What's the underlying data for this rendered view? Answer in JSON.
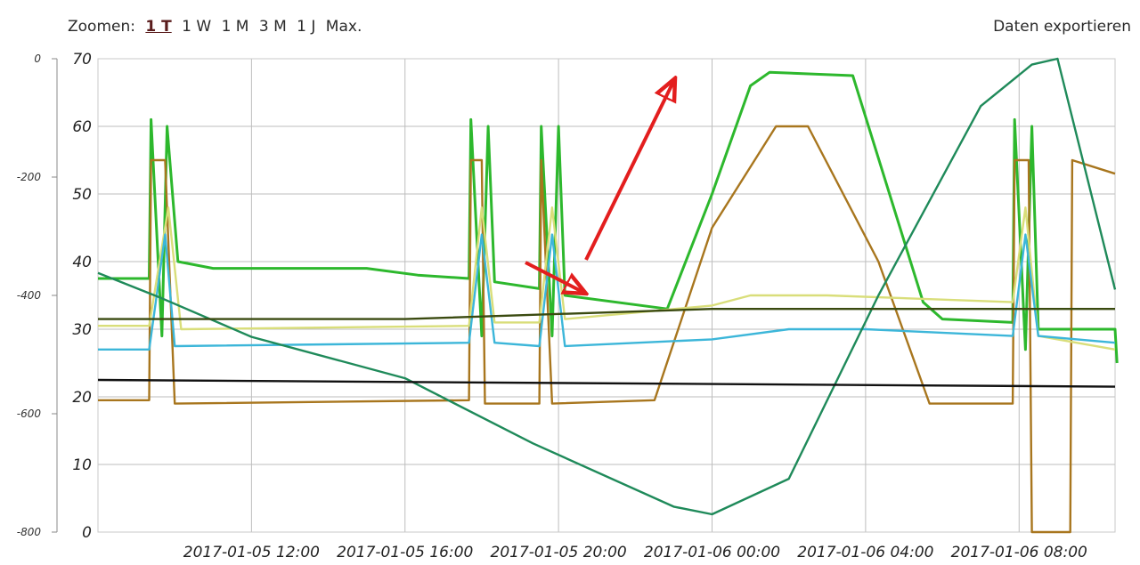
{
  "toolbar": {
    "zoom_label": "Zoomen:",
    "zoom_options": [
      "1 T",
      "1 W",
      "1 M",
      "3 M",
      "1 J",
      "Max."
    ],
    "active_zoom": "1 T",
    "export_label": "Daten exportieren"
  },
  "chart_data": {
    "type": "line",
    "title": "",
    "xlabel": "",
    "ylabel": "",
    "grid": true,
    "legend": "none",
    "x_ticks": [
      "2017-01-05 12:00",
      "2017-01-05 16:00",
      "2017-01-05 20:00",
      "2017-01-06 00:00",
      "2017-01-06 04:00",
      "2017-01-06 08:00"
    ],
    "x_range": [
      "2017-01-05 08:00",
      "2017-01-06 10:30"
    ],
    "y_axis_left": {
      "ticks": [
        0,
        -200,
        -400,
        -600,
        -800
      ],
      "range": [
        -800,
        0
      ]
    },
    "y_axis_right": {
      "ticks": [
        70,
        60,
        50,
        40,
        30,
        20,
        10,
        0
      ],
      "range": [
        0,
        70
      ]
    },
    "series": [
      {
        "color": "#2db82d",
        "axis": "right",
        "points": [
          [
            "2017-01-05 08:00",
            37.5
          ],
          [
            "2017-01-05 09:20",
            37.5
          ],
          [
            "2017-01-05 09:23",
            61
          ],
          [
            "2017-01-05 09:40",
            29
          ],
          [
            "2017-01-05 09:48",
            60
          ],
          [
            "2017-01-05 10:05",
            40
          ],
          [
            "2017-01-05 11:00",
            39
          ],
          [
            "2017-01-05 15:00",
            39
          ],
          [
            "2017-01-05 16:20",
            38
          ],
          [
            "2017-01-05 17:40",
            37.5
          ],
          [
            "2017-01-05 17:43",
            61
          ],
          [
            "2017-01-05 18:00",
            29
          ],
          [
            "2017-01-05 18:10",
            60
          ],
          [
            "2017-01-05 18:20",
            37
          ],
          [
            "2017-01-05 19:30",
            36
          ],
          [
            "2017-01-05 19:33",
            60
          ],
          [
            "2017-01-05 19:50",
            29
          ],
          [
            "2017-01-05 20:00",
            60
          ],
          [
            "2017-01-05 20:10",
            35
          ],
          [
            "2017-01-05 22:50",
            33
          ],
          [
            "2017-01-06 00:00",
            50
          ],
          [
            "2017-01-06 01:00",
            66
          ],
          [
            "2017-01-06 01:30",
            68
          ],
          [
            "2017-01-06 03:40",
            67.5
          ],
          [
            "2017-01-06 05:30",
            34
          ],
          [
            "2017-01-06 06:00",
            31.5
          ],
          [
            "2017-01-06 07:50",
            31
          ],
          [
            "2017-01-06 07:53",
            61
          ],
          [
            "2017-01-06 08:10",
            27
          ],
          [
            "2017-01-06 08:20",
            60
          ],
          [
            "2017-01-06 08:30",
            30
          ],
          [
            "2017-01-06 10:30",
            30
          ],
          [
            "2017-01-06 10:33",
            25
          ]
        ]
      },
      {
        "color": "#a8761e",
        "axis": "right",
        "points": [
          [
            "2017-01-05 08:00",
            19.5
          ],
          [
            "2017-01-05 09:20",
            19.5
          ],
          [
            "2017-01-05 09:23",
            55
          ],
          [
            "2017-01-05 09:45",
            55
          ],
          [
            "2017-01-05 10:00",
            19
          ],
          [
            "2017-01-05 17:40",
            19.5
          ],
          [
            "2017-01-05 17:43",
            55
          ],
          [
            "2017-01-05 18:00",
            55
          ],
          [
            "2017-01-05 18:05",
            19
          ],
          [
            "2017-01-05 19:30",
            19
          ],
          [
            "2017-01-05 19:33",
            55
          ],
          [
            "2017-01-05 19:50",
            19
          ],
          [
            "2017-01-05 22:30",
            19.5
          ],
          [
            "2017-01-06 00:00",
            45
          ],
          [
            "2017-01-06 01:40",
            60
          ],
          [
            "2017-01-06 02:30",
            60
          ],
          [
            "2017-01-06 04:20",
            40
          ],
          [
            "2017-01-06 05:40",
            19
          ],
          [
            "2017-01-06 07:50",
            19
          ],
          [
            "2017-01-06 07:53",
            55
          ],
          [
            "2017-01-06 08:15",
            55
          ],
          [
            "2017-01-06 08:20",
            0
          ],
          [
            "2017-01-06 09:20",
            0
          ],
          [
            "2017-01-06 09:23",
            55
          ],
          [
            "2017-01-06 10:30",
            53
          ]
        ]
      },
      {
        "color": "#d9de7a",
        "axis": "right",
        "points": [
          [
            "2017-01-05 08:00",
            30.5
          ],
          [
            "2017-01-05 09:20",
            30.5
          ],
          [
            "2017-01-05 09:50",
            48
          ],
          [
            "2017-01-05 10:10",
            30
          ],
          [
            "2017-01-05 17:40",
            30.5
          ],
          [
            "2017-01-05 18:00",
            48
          ],
          [
            "2017-01-05 18:20",
            31
          ],
          [
            "2017-01-05 19:30",
            31
          ],
          [
            "2017-01-05 19:50",
            48
          ],
          [
            "2017-01-05 20:10",
            31.5
          ],
          [
            "2017-01-06 00:00",
            33.5
          ],
          [
            "2017-01-06 01:00",
            35
          ],
          [
            "2017-01-06 03:00",
            35
          ],
          [
            "2017-01-06 07:50",
            34
          ],
          [
            "2017-01-06 08:10",
            48
          ],
          [
            "2017-01-06 08:30",
            29
          ],
          [
            "2017-01-06 10:30",
            27
          ]
        ]
      },
      {
        "color": "#3cb6d9",
        "axis": "right",
        "points": [
          [
            "2017-01-05 08:00",
            27
          ],
          [
            "2017-01-05 09:20",
            27
          ],
          [
            "2017-01-05 09:45",
            44
          ],
          [
            "2017-01-05 10:00",
            27.5
          ],
          [
            "2017-01-05 17:40",
            28
          ],
          [
            "2017-01-05 18:00",
            44
          ],
          [
            "2017-01-05 18:20",
            28
          ],
          [
            "2017-01-05 19:30",
            27.5
          ],
          [
            "2017-01-05 19:50",
            44
          ],
          [
            "2017-01-05 20:10",
            27.5
          ],
          [
            "2017-01-06 00:00",
            28.5
          ],
          [
            "2017-01-06 02:00",
            30
          ],
          [
            "2017-01-06 04:00",
            30
          ],
          [
            "2017-01-06 07:50",
            29
          ],
          [
            "2017-01-06 08:10",
            44
          ],
          [
            "2017-01-06 08:30",
            29
          ],
          [
            "2017-01-06 10:30",
            28
          ]
        ]
      },
      {
        "color": "#1f8a5a",
        "axis": "left",
        "points": [
          [
            "2017-01-05 08:00",
            -362
          ],
          [
            "2017-01-05 09:40",
            -405
          ],
          [
            "2017-01-05 12:00",
            -470
          ],
          [
            "2017-01-05 16:00",
            -540
          ],
          [
            "2017-01-05 19:20",
            -650
          ],
          [
            "2017-01-05 23:00",
            -757
          ],
          [
            "2017-01-06 00:00",
            -770
          ],
          [
            "2017-01-06 02:00",
            -710
          ],
          [
            "2017-01-06 04:20",
            -400
          ],
          [
            "2017-01-06 07:00",
            -80
          ],
          [
            "2017-01-06 08:20",
            -10
          ],
          [
            "2017-01-06 09:00",
            0
          ],
          [
            "2017-01-06 10:30",
            -390
          ]
        ]
      },
      {
        "color": "#3a4a10",
        "axis": "right",
        "points": [
          [
            "2017-01-05 08:00",
            31.5
          ],
          [
            "2017-01-05 16:00",
            31.5
          ],
          [
            "2017-01-06 00:00",
            33
          ],
          [
            "2017-01-06 04:00",
            33
          ],
          [
            "2017-01-06 10:30",
            33
          ]
        ]
      },
      {
        "color": "#111111",
        "axis": "right",
        "points": [
          [
            "2017-01-05 08:00",
            22.5
          ],
          [
            "2017-01-06 10:30",
            21.5
          ]
        ]
      }
    ]
  }
}
